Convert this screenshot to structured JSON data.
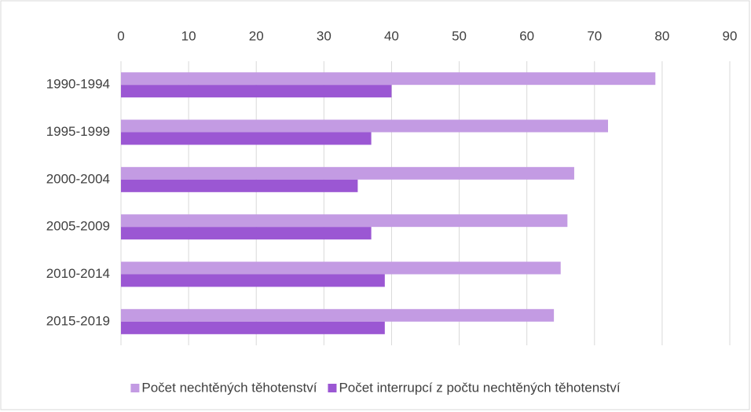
{
  "chart_data": {
    "type": "bar",
    "orientation": "horizontal",
    "categories": [
      "1990-1994",
      "1995-1999",
      "2000-2004",
      "2005-2009",
      "2010-2014",
      "2015-2019"
    ],
    "series": [
      {
        "name": "Počet nechtěných těhotenství",
        "color": "#c39be3",
        "values": [
          79,
          72,
          67,
          66,
          65,
          64
        ]
      },
      {
        "name": "Počet interrupcí z počtu nechtěných těhotenství",
        "color": "#9b57d3",
        "values": [
          40,
          37,
          35,
          37,
          39,
          39
        ]
      }
    ],
    "xlim": [
      0,
      90
    ],
    "xticks": [
      0,
      10,
      20,
      30,
      40,
      50,
      60,
      70,
      80,
      90
    ],
    "grid": true,
    "legend": "bottom"
  }
}
